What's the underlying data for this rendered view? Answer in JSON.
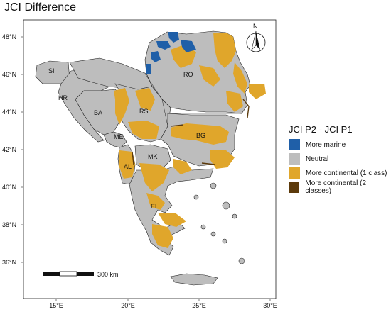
{
  "title": "JCI Difference",
  "axes": {
    "y_ticks": [
      "48°N",
      "46°N",
      "44°N",
      "42°N",
      "40°N",
      "38°N",
      "36°N"
    ],
    "x_ticks": [
      "15°E",
      "20°E",
      "25°E",
      "30°E"
    ]
  },
  "country_labels": [
    "SI",
    "HR",
    "BA",
    "RS",
    "ME",
    "AL",
    "MK",
    "BG",
    "RO",
    "EL"
  ],
  "scale_bar": {
    "label": "300 km"
  },
  "north_arrow": {
    "label": "N"
  },
  "legend": {
    "title": "JCI P2 - JCI P1",
    "items": [
      {
        "label": "More marine",
        "color": "#1f5fa8"
      },
      {
        "label": "Neutral",
        "color": "#bdbdbd"
      },
      {
        "label": "More continental (1 class)",
        "color": "#e0a62b"
      },
      {
        "label": "More continental (2 classes)",
        "color": "#5c3a0b"
      }
    ]
  }
}
